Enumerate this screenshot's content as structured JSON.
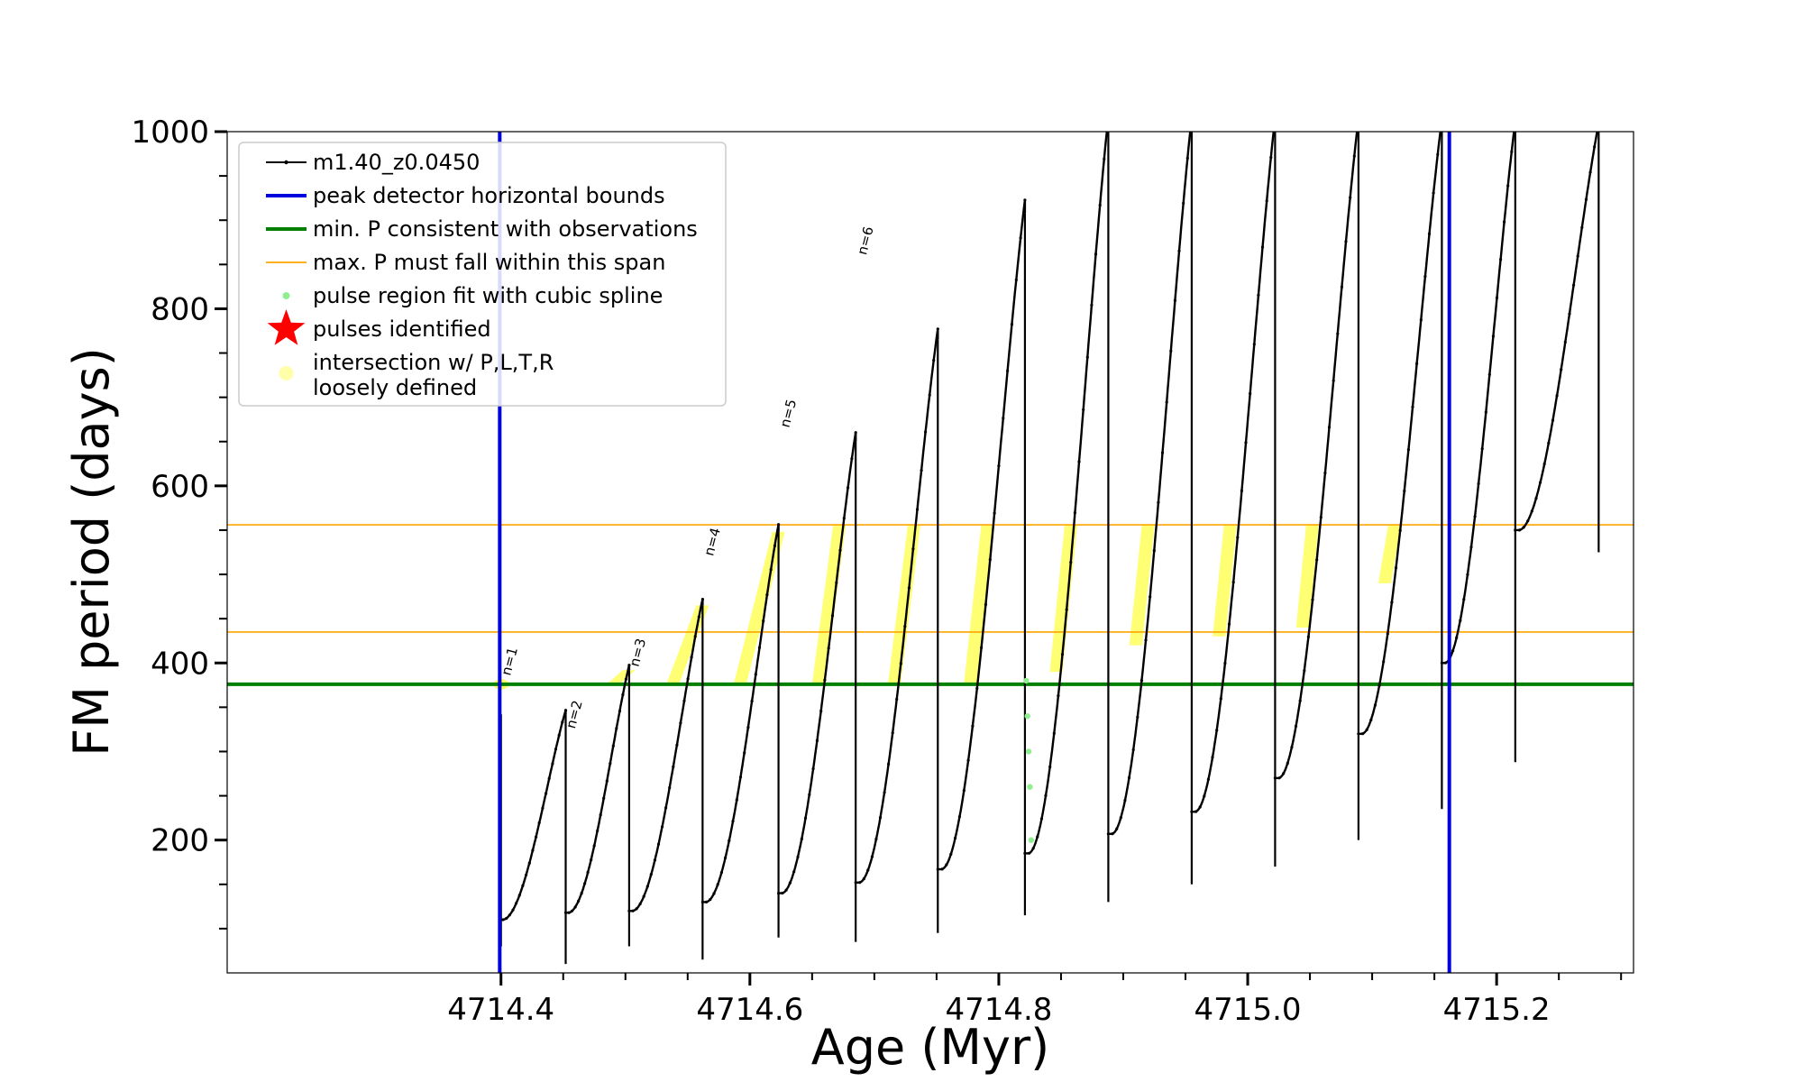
{
  "chart_data": {
    "type": "line",
    "xlabel": "Age (Myr)",
    "ylabel": "FM period (days)",
    "xlim": [
      4714.18,
      4715.31
    ],
    "ylim": [
      50,
      1000
    ],
    "x_ticks": [
      4714.4,
      4714.6,
      4714.8,
      4715.0,
      4715.2
    ],
    "x_tick_labels": [
      "4714.4",
      "4714.6",
      "4714.8",
      "4715.0",
      "4715.2"
    ],
    "y_ticks": [
      200,
      400,
      600,
      800,
      1000
    ],
    "y_tick_labels": [
      "200",
      "400",
      "600",
      "800",
      "1000"
    ],
    "legend_position": "top-left",
    "legend": [
      {
        "label": "m1.40_z0.0450",
        "style": "line-dot",
        "color": "#000000"
      },
      {
        "label": "peak detector horizontal bounds",
        "style": "line",
        "color": "#0000dd"
      },
      {
        "label": "min. P consistent with observations",
        "style": "line",
        "color": "#007f00"
      },
      {
        "label": "max. P must fall within this span",
        "style": "thin-line",
        "color": "#ffa500"
      },
      {
        "label": "pulse region fit with cubic spline",
        "style": "dot",
        "color": "#90ee90"
      },
      {
        "label": "pulses identified",
        "style": "star",
        "color": "#ff0000"
      },
      {
        "label": "intersection w/ P,L,T,R",
        "label2": "loosely defined",
        "style": "dot",
        "color": "#ffffaa"
      }
    ],
    "vertical_lines": [
      {
        "name": "peak detector horizontal bounds",
        "x": 4714.399,
        "color": "#0000dd"
      },
      {
        "name": "peak detector horizontal bounds",
        "x": 4715.162,
        "color": "#0000dd"
      }
    ],
    "horizontal_lines": [
      {
        "name": "min. P consistent with observations",
        "y": 376,
        "color": "#007f00"
      },
      {
        "name": "max. P must fall within this span",
        "y": 435,
        "color": "#ffa500"
      },
      {
        "name": "max. P must fall within this span",
        "y": 556,
        "color": "#ffa500"
      }
    ],
    "series": [
      {
        "name": "m1.40_z0.0450",
        "color": "#000000",
        "pulses": [
          {
            "start": 4714.399,
            "end": 4714.452,
            "low": 110,
            "peak": 342
          },
          {
            "start": 4714.452,
            "end": 4714.503,
            "low": 118,
            "peak": 392
          },
          {
            "start": 4714.503,
            "end": 4714.562,
            "low": 120,
            "peak": 465
          },
          {
            "start": 4714.562,
            "end": 4714.623,
            "low": 130,
            "peak": 548
          },
          {
            "start": 4714.623,
            "end": 4714.685,
            "low": 140,
            "peak": 650
          },
          {
            "start": 4714.685,
            "end": 4714.751,
            "low": 152,
            "peak": 765
          },
          {
            "start": 4714.751,
            "end": 4714.821,
            "low": 167,
            "peak": 908
          },
          {
            "start": 4714.821,
            "end": 4714.888,
            "low": 185,
            "peak": 1000
          },
          {
            "start": 4714.888,
            "end": 4714.955,
            "low": 207,
            "peak": 1000
          },
          {
            "start": 4714.955,
            "end": 4715.022,
            "low": 232,
            "peak": 1000
          },
          {
            "start": 4715.022,
            "end": 4715.089,
            "low": 270,
            "peak": 1000
          },
          {
            "start": 4715.089,
            "end": 4715.156,
            "low": 320,
            "peak": 1000
          },
          {
            "start": 4715.156,
            "end": 4715.215,
            "low": 400,
            "peak": 1000
          },
          {
            "start": 4715.215,
            "end": 4715.282,
            "low": 550,
            "peak": 1000
          }
        ],
        "dips": [
          {
            "x": 4714.4,
            "y": 80
          },
          {
            "x": 4714.452,
            "y": 60
          },
          {
            "x": 4714.503,
            "y": 80
          },
          {
            "x": 4714.562,
            "y": 65
          },
          {
            "x": 4714.623,
            "y": 90
          },
          {
            "x": 4714.685,
            "y": 85
          },
          {
            "x": 4714.751,
            "y": 95
          },
          {
            "x": 4714.821,
            "y": 115
          },
          {
            "x": 4714.888,
            "y": 130
          },
          {
            "x": 4714.955,
            "y": 150
          },
          {
            "x": 4715.022,
            "y": 170
          },
          {
            "x": 4715.089,
            "y": 200
          },
          {
            "x": 4715.156,
            "y": 235
          },
          {
            "x": 4715.215,
            "y": 288
          },
          {
            "x": 4715.282,
            "y": 525
          }
        ]
      },
      {
        "name": "pulse region fit with cubic spline",
        "color": "#90ee90",
        "x": [
          4714.822,
          4714.823,
          4714.824,
          4714.825,
          4714.826
        ],
        "y": [
          380,
          340,
          300,
          260,
          200
        ]
      }
    ],
    "yellow_regions": [
      {
        "x": 4714.4,
        "y_min": 376,
        "y_max": 378
      },
      {
        "x1": 4714.49,
        "x2": 4714.503,
        "y_min": 376,
        "y_max": 392
      },
      {
        "x1": 4714.538,
        "x2": 4714.562,
        "y_min": 376,
        "y_max": 465
      },
      {
        "x1": 4714.592,
        "x2": 4714.623,
        "y_min": 376,
        "y_max": 548
      },
      {
        "x1": 4714.655,
        "x2": 4714.672,
        "y_min": 376,
        "y_max": 556
      },
      {
        "x1": 4714.716,
        "x2": 4714.732,
        "y_min": 376,
        "y_max": 556
      },
      {
        "x1": 4714.777,
        "x2": 4714.791,
        "y_min": 376,
        "y_max": 556
      },
      {
        "x1": 4714.846,
        "x2": 4714.858,
        "y_min": 390,
        "y_max": 556
      },
      {
        "x1": 4714.91,
        "x2": 4714.92,
        "y_min": 420,
        "y_max": 556
      },
      {
        "x1": 4714.977,
        "x2": 4714.986,
        "y_min": 430,
        "y_max": 556
      },
      {
        "x1": 4715.044,
        "x2": 4715.052,
        "y_min": 440,
        "y_max": 556
      },
      {
        "x1": 4715.11,
        "x2": 4715.118,
        "y_min": 490,
        "y_max": 556
      }
    ],
    "pulse_labels": [
      {
        "text": "n=1",
        "x": 4714.403,
        "y": 385
      },
      {
        "text": "n=2",
        "x": 4714.455,
        "y": 325
      },
      {
        "text": "n=3",
        "x": 4714.506,
        "y": 395
      },
      {
        "text": "n=4",
        "x": 4714.566,
        "y": 520
      },
      {
        "text": "n=5",
        "x": 4714.627,
        "y": 665
      },
      {
        "text": "n=6",
        "x": 4714.689,
        "y": 860
      }
    ]
  }
}
